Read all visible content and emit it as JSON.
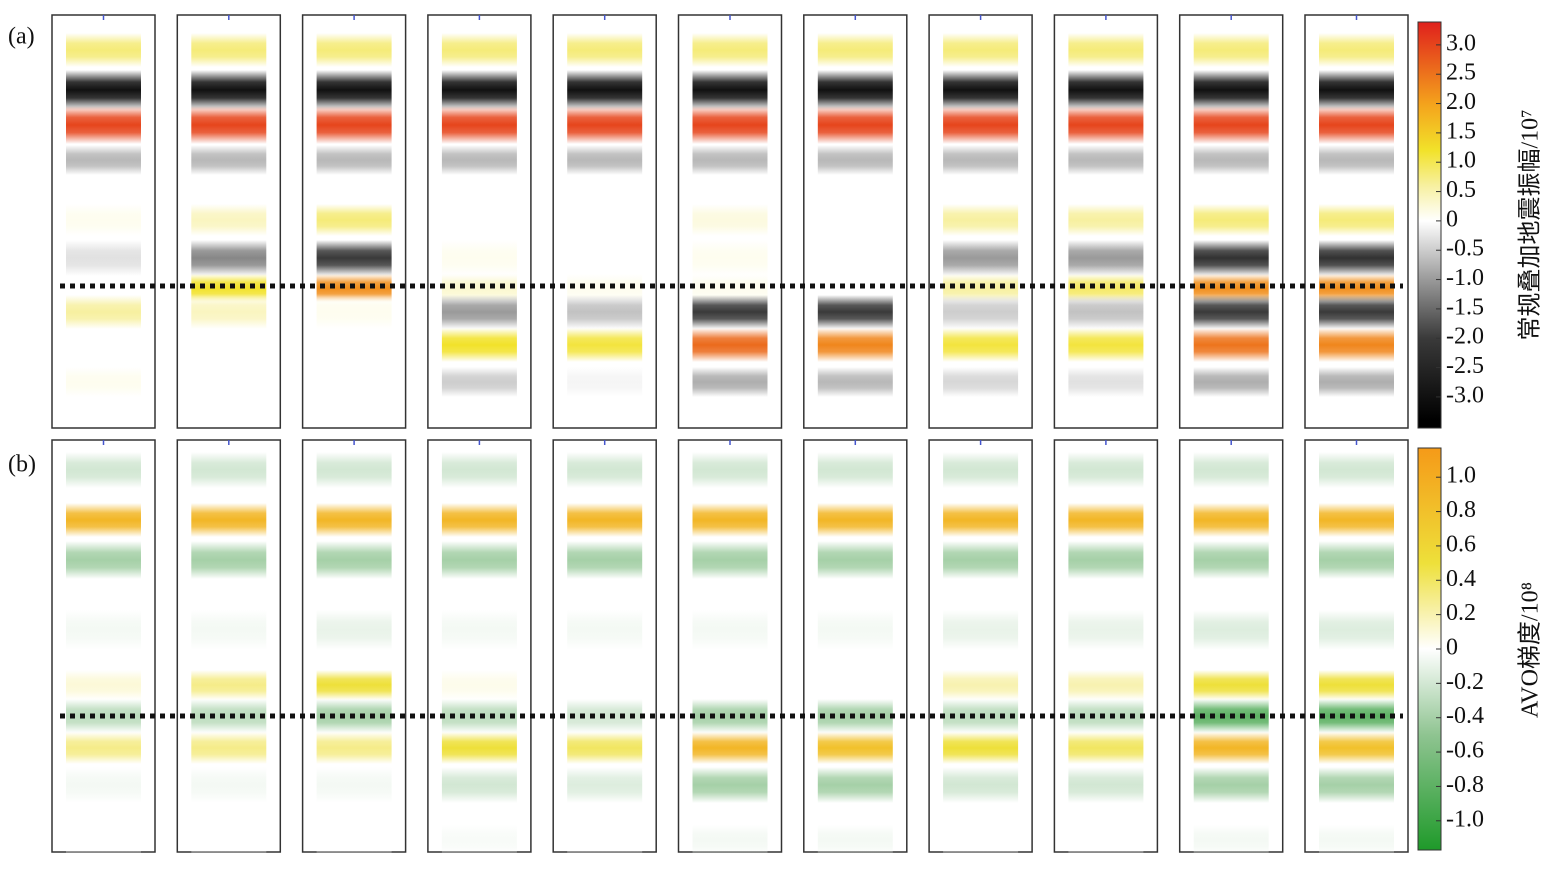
{
  "chart_data": [
    {
      "type": "trace-bands",
      "panel_label": "(a)",
      "colorbar_title": "常规叠加地震振幅/10⁷",
      "clim": [
        -3.53,
        3.39
      ],
      "cticks": [
        {
          "value": 3,
          "label": "3.0"
        },
        2.5,
        {
          "value": 2,
          "label": "2.0"
        },
        1.5,
        {
          "value": 1,
          "label": "1.0"
        },
        0.5,
        0,
        -0.5,
        {
          "value": -1,
          "label": "-1.0"
        },
        -1.5,
        {
          "value": -2,
          "label": "-2.0"
        },
        -2.5,
        {
          "value": -3,
          "label": "-3.0"
        }
      ],
      "colormap": [
        [
          -3.4,
          "#000000"
        ],
        [
          -2,
          "#3a3a3a"
        ],
        [
          -1,
          "#9a9a9a"
        ],
        [
          0,
          "#ffffff"
        ],
        [
          0.6,
          "#f7f0a0"
        ],
        [
          1.2,
          "#f2e22a"
        ],
        [
          2,
          "#f4a21c"
        ],
        [
          3.4,
          "#e0201c"
        ]
      ],
      "traces": [
        [
          0.8,
          -3,
          3,
          -0.7,
          0.1,
          -0.3,
          0,
          0.6,
          0,
          0.1
        ],
        [
          0.8,
          -3,
          3,
          -0.7,
          0.4,
          -1.2,
          1.2,
          0.4,
          0,
          0
        ],
        [
          0.8,
          -3,
          3,
          -0.7,
          0.8,
          -2,
          2.2,
          0.1,
          0,
          0
        ],
        [
          0.8,
          -3,
          3,
          -0.7,
          0,
          0.1,
          0.3,
          -1,
          1.2,
          -0.5
        ],
        [
          0.8,
          -3,
          3,
          -0.7,
          0,
          0,
          0.1,
          -0.6,
          1.1,
          -0.1
        ],
        [
          0.8,
          -3,
          3,
          -0.7,
          0.2,
          0.1,
          0.1,
          -2,
          2.6,
          -0.8
        ],
        [
          0.8,
          -3,
          3,
          -0.7,
          0,
          0,
          0,
          -2,
          2.3,
          -0.7
        ],
        [
          0.8,
          -3,
          3,
          -0.7,
          0.6,
          -1,
          0.6,
          -0.5,
          1.1,
          -0.4
        ],
        [
          0.8,
          -3,
          3,
          -0.7,
          0.6,
          -1,
          0.9,
          -0.6,
          1.1,
          -0.3
        ],
        [
          0.8,
          -3,
          3,
          -0.7,
          0.8,
          -2.2,
          2.2,
          -2,
          2.5,
          -0.8
        ],
        [
          0.8,
          -3,
          3,
          -0.7,
          0.8,
          -2.2,
          2.2,
          -2,
          2.3,
          -0.8
        ]
      ]
    },
    {
      "type": "trace-bands",
      "panel_label": "(b)",
      "colorbar_title": "AVO梯度/10⁸",
      "clim": [
        -1.17,
        1.17
      ],
      "cticks": [
        {
          "value": 1,
          "label": "1.0"
        },
        0.8,
        0.6,
        0.4,
        0.2,
        0,
        -0.2,
        -0.4,
        -0.6,
        -0.8,
        {
          "value": -1,
          "label": "-1.0"
        }
      ],
      "colormap": [
        [
          -1.17,
          "#1f9a2a"
        ],
        [
          -0.5,
          "#8fc491"
        ],
        [
          0,
          "#ffffff"
        ],
        [
          0.2,
          "#f8f2b0"
        ],
        [
          0.5,
          "#eee03a"
        ],
        [
          1.17,
          "#f59a18"
        ]
      ],
      "traces": [
        [
          -0.2,
          0.9,
          -0.4,
          -0.05,
          0.1,
          -0.3,
          0.3,
          -0.05,
          0
        ],
        [
          -0.2,
          0.9,
          -0.4,
          -0.05,
          0.3,
          -0.3,
          0.3,
          -0.05,
          0
        ],
        [
          -0.2,
          0.9,
          -0.4,
          -0.1,
          0.5,
          -0.4,
          0.3,
          -0.05,
          0
        ],
        [
          -0.2,
          0.9,
          -0.4,
          -0.05,
          0.05,
          -0.3,
          0.5,
          -0.2,
          -0.03
        ],
        [
          -0.2,
          0.9,
          -0.4,
          -0.05,
          0,
          -0.2,
          0.4,
          -0.15,
          0
        ],
        [
          -0.2,
          0.9,
          -0.4,
          -0.05,
          0,
          -0.4,
          0.9,
          -0.4,
          -0.05
        ],
        [
          -0.2,
          0.9,
          -0.4,
          -0.05,
          0,
          -0.4,
          0.8,
          -0.4,
          -0.05
        ],
        [
          -0.2,
          0.9,
          -0.4,
          -0.1,
          0.2,
          -0.3,
          0.5,
          -0.2,
          0
        ],
        [
          -0.2,
          0.9,
          -0.4,
          -0.1,
          0.2,
          -0.3,
          0.4,
          -0.2,
          0
        ],
        [
          -0.2,
          0.9,
          -0.4,
          -0.15,
          0.5,
          -0.8,
          0.9,
          -0.4,
          -0.05
        ],
        [
          -0.2,
          0.9,
          -0.4,
          -0.15,
          0.5,
          -0.8,
          0.8,
          -0.4,
          -0.05
        ]
      ]
    }
  ]
}
